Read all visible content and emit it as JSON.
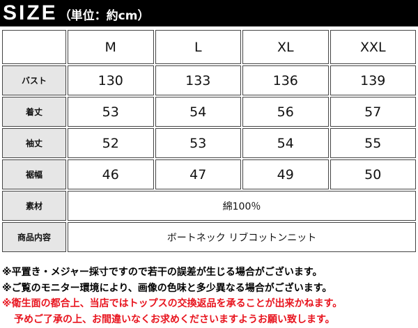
{
  "header": {
    "title": "SIZE",
    "unit": "（単位：約cm）"
  },
  "table": {
    "columns": [
      "M",
      "L",
      "XL",
      "XXL"
    ],
    "rows": [
      {
        "label": "バスト",
        "values": [
          130,
          133,
          136,
          139
        ]
      },
      {
        "label": "着丈",
        "values": [
          53,
          54,
          56,
          57
        ]
      },
      {
        "label": "袖丈",
        "values": [
          52,
          53,
          54,
          55
        ]
      },
      {
        "label": "裾幅",
        "values": [
          46,
          47,
          49,
          50
        ]
      }
    ],
    "spans": [
      {
        "label": "素材",
        "value": "綿100％"
      },
      {
        "label": "商品内容",
        "value": "ボートネック リブコットンニット"
      }
    ]
  },
  "notes": [
    "※平置き・メジャー採寸ですので若干の誤差が生じる場合がございます。",
    "※ご覧のモニター環境により、画像の色味と多少異なる場合がございます。"
  ],
  "warnings": [
    "※衛生面の都合上、当店ではトップスの交換返品を承ることが出来かねます。",
    "予めご了承の上、お間違いなくお求めくださいますようお願い致します。"
  ]
}
